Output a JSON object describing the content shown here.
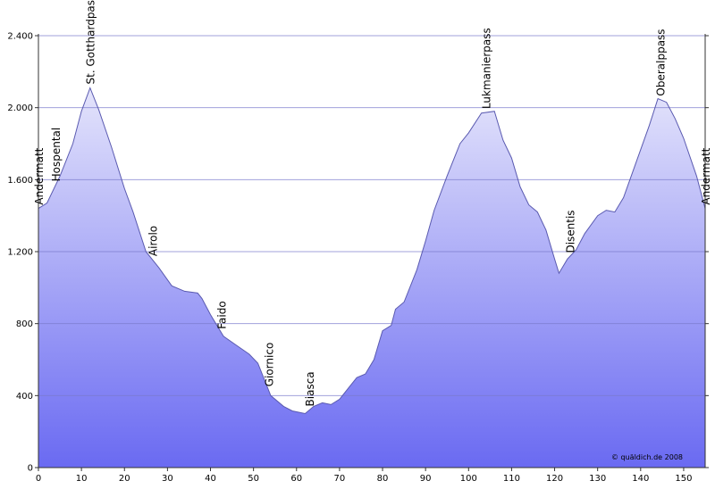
{
  "chart_data": {
    "type": "area",
    "x": [
      0,
      2,
      5,
      8,
      10,
      12,
      14,
      17,
      20,
      22,
      25,
      28,
      31,
      34,
      37,
      38,
      40,
      43,
      46,
      49,
      51,
      54,
      57,
      59,
      62,
      64,
      66,
      68,
      70,
      72,
      74,
      76,
      78,
      80,
      82,
      83,
      85,
      88,
      90,
      92,
      95,
      98,
      100,
      103,
      106,
      108,
      110,
      112,
      114,
      116,
      118,
      120,
      121,
      123,
      125,
      127,
      130,
      132,
      134,
      136,
      139,
      142,
      144,
      146,
      148,
      150,
      153,
      155
    ],
    "values": [
      1440,
      1470,
      1620,
      1800,
      1980,
      2110,
      1990,
      1780,
      1550,
      1420,
      1200,
      1110,
      1010,
      980,
      970,
      940,
      850,
      730,
      680,
      630,
      580,
      400,
      340,
      315,
      300,
      340,
      360,
      350,
      380,
      440,
      500,
      520,
      600,
      760,
      790,
      880,
      920,
      1100,
      1260,
      1430,
      1620,
      1800,
      1860,
      1970,
      1980,
      1820,
      1720,
      1560,
      1460,
      1420,
      1320,
      1160,
      1080,
      1160,
      1210,
      1300,
      1400,
      1430,
      1420,
      1500,
      1700,
      1900,
      2050,
      2030,
      1940,
      1830,
      1620,
      1440
    ],
    "color": "#6a6af2",
    "xlim": [
      0,
      155
    ],
    "xticks": [
      0,
      10,
      20,
      30,
      40,
      50,
      60,
      70,
      80,
      90,
      100,
      110,
      120,
      130,
      140,
      150
    ],
    "ylim": [
      0,
      2400
    ],
    "yticks": [
      0,
      400,
      800,
      {
        "value": 1200,
        "label": "1.200"
      },
      {
        "value": 1600,
        "label": "1.600"
      },
      {
        "value": 2000,
        "label": "2.000"
      },
      {
        "value": 2400,
        "label": "2.400"
      }
    ],
    "grid": true,
    "annotations": [
      {
        "text": "Andermatt",
        "x": 0
      },
      {
        "text": "Hospental",
        "x": 4
      },
      {
        "text": "St. Gotthardpass",
        "x": 12
      },
      {
        "text": "Airolo",
        "x": 26.5
      },
      {
        "text": "Faido",
        "x": 42.5
      },
      {
        "text": "Giornico",
        "x": 53.5
      },
      {
        "text": "Biasca",
        "x": 63
      },
      {
        "text": "Lukmanierpass",
        "x": 104
      },
      {
        "text": "Disentis",
        "x": 123.5
      },
      {
        "text": "Oberalppass",
        "x": 144.5
      },
      {
        "text": "Andermatt",
        "x": 155
      }
    ],
    "credit": "© quäldich.de 2008"
  }
}
